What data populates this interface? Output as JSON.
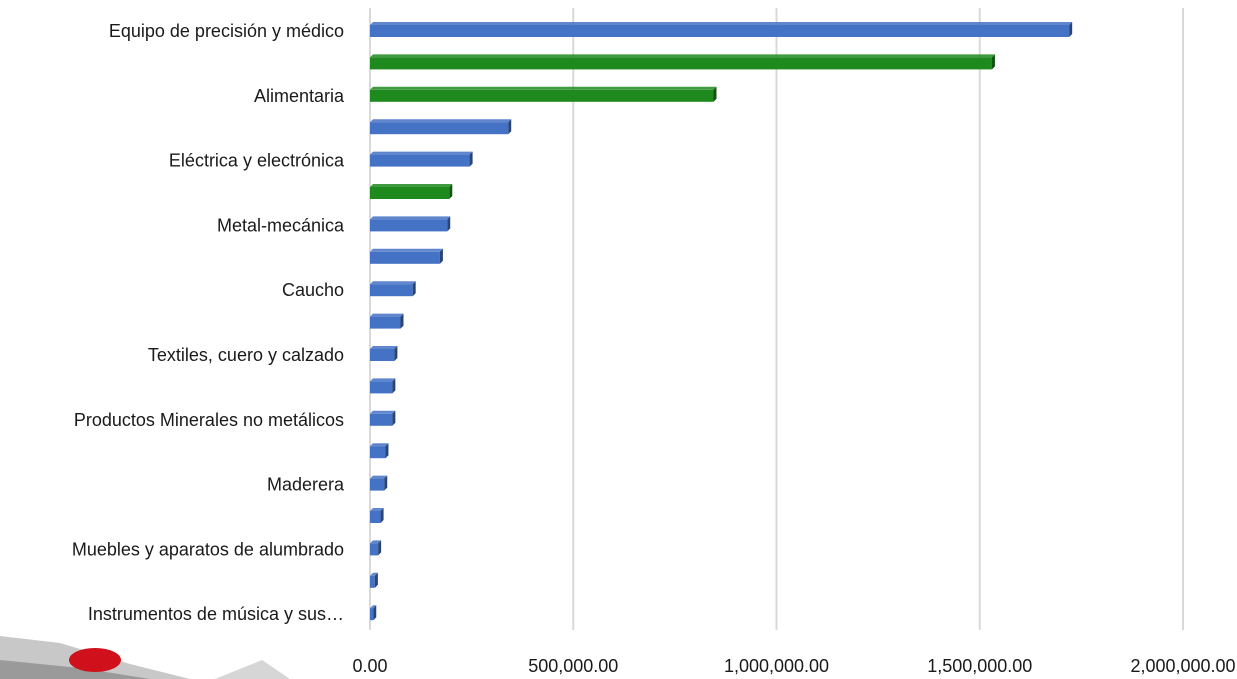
{
  "chart_data": {
    "type": "bar",
    "orientation": "horizontal",
    "categories": [
      "Equipo de precisión y médico",
      "",
      "Alimentaria",
      "",
      "Eléctrica y electrónica",
      "",
      "Metal-mecánica",
      "",
      "Caucho",
      "",
      "Textiles, cuero y calzado",
      "",
      "Productos Minerales no metálicos",
      "",
      "Maderera",
      "",
      "Muebles y aparatos de alumbrado",
      "",
      "Instrumentos de música y sus…"
    ],
    "values": [
      1720000,
      1530000,
      845000,
      340000,
      245000,
      195000,
      190000,
      172000,
      105000,
      75000,
      60000,
      55000,
      55000,
      38000,
      35000,
      26000,
      20000,
      12000,
      8000
    ],
    "bar_colors": [
      "#4472c4",
      "#1e8a1e",
      "#1e8a1e",
      "#4472c4",
      "#4472c4",
      "#1e8a1e",
      "#4472c4",
      "#4472c4",
      "#4472c4",
      "#4472c4",
      "#4472c4",
      "#4472c4",
      "#4472c4",
      "#4472c4",
      "#4472c4",
      "#4472c4",
      "#4472c4",
      "#4472c4",
      "#4472c4"
    ],
    "x_ticks": [
      "0.00",
      "500,000.00",
      "1,000,000.00",
      "1,500,000.00",
      "2,000,000.00"
    ],
    "xlim": [
      0,
      2000000
    ],
    "grid": "vertical",
    "legend": "none",
    "style": "3d-bar"
  }
}
